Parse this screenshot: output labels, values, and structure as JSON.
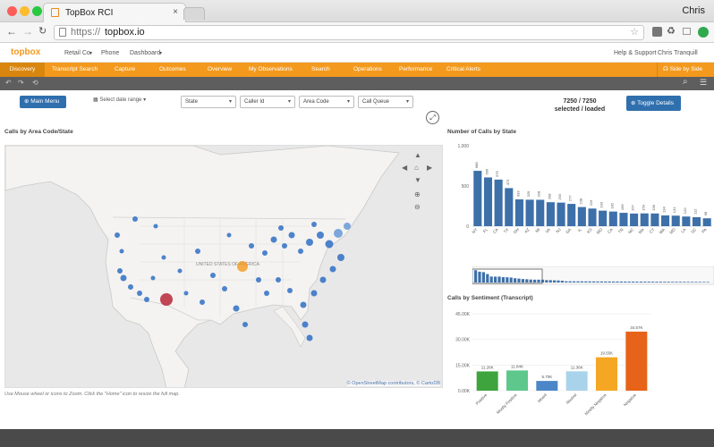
{
  "browser": {
    "tab_title": "TopBox RCI",
    "profile_name": "Chris",
    "url_prefix": "https://",
    "url_host": "topbox.io"
  },
  "app": {
    "logo": "topbox",
    "menus": [
      "Retail Co.",
      "Phone",
      "Dashboard"
    ],
    "right_menus": [
      "Help & Support",
      "Chris Tranquill"
    ],
    "nav_items": [
      "Discovery",
      "Transcript Search",
      "Capture",
      "Outcomes",
      "Overview",
      "My Observations",
      "Search",
      "Operations",
      "Performance",
      "Critical Alerts"
    ],
    "side_by_side": "Side by Side"
  },
  "controls": {
    "main_menu": "Main Menu",
    "date_range": "Select date range",
    "filters": [
      "State",
      "Caller Id",
      "Area Code",
      "Call Queue"
    ],
    "selected_count": "7250 / 7250",
    "selected_label": "selected / loaded",
    "toggle_details": "Toggle Details"
  },
  "map": {
    "title": "Calls by Area Code/State",
    "attribution": "© OpenStreetMap contributors, © CartoDB",
    "hint": "Use Mouse wheel or icons to Zoom. Click the \"Home\" icon to resize the full map.",
    "country_label": "UNITED STATES OF AMERICA",
    "marker_color": "#2f6fc4"
  },
  "chart_data": [
    {
      "type": "bar",
      "title": "Number of Calls by State",
      "categories": [
        "NY",
        "FL",
        "CA",
        "TX",
        "OH",
        "AZ",
        "MI",
        "VA",
        "NJ",
        "GA",
        "IL",
        "KS",
        "MO",
        "CA",
        "TN",
        "NC",
        "MA",
        "CT",
        "WA",
        "MD",
        "LA",
        "SC",
        "PA"
      ],
      "values": [
        688,
        606,
        579,
        473,
        333,
        329,
        328,
        298,
        293,
        277,
        238,
        219,
        193,
        182,
        166,
        157,
        159,
        158,
        134,
        131,
        120,
        112,
        98
      ],
      "ylim": [
        0,
        1000
      ],
      "yticks": [
        "1,000",
        "500",
        "0"
      ],
      "color": "#3d6fa8"
    },
    {
      "type": "bar",
      "title": "Calls by Sentiment (Transcript)",
      "categories": [
        "Positive",
        "Mostly Positive",
        "Mixed",
        "Neutral",
        "Mostly Negative",
        "Negative"
      ],
      "values": [
        11.28,
        11.84,
        5.7,
        11.36,
        19.55,
        34.57
      ],
      "value_labels": [
        "11.28K",
        "11.84K",
        "5.70K",
        "11.36K",
        "19.55K",
        "34.57K"
      ],
      "ylim": [
        0,
        45
      ],
      "yticks": [
        "45.00K",
        "30.00K",
        "15.00K",
        "0.00K"
      ],
      "colors": [
        "#3ea53e",
        "#5ec78b",
        "#4a86c8",
        "#a9d3ea",
        "#f5a623",
        "#e8631a"
      ]
    }
  ]
}
